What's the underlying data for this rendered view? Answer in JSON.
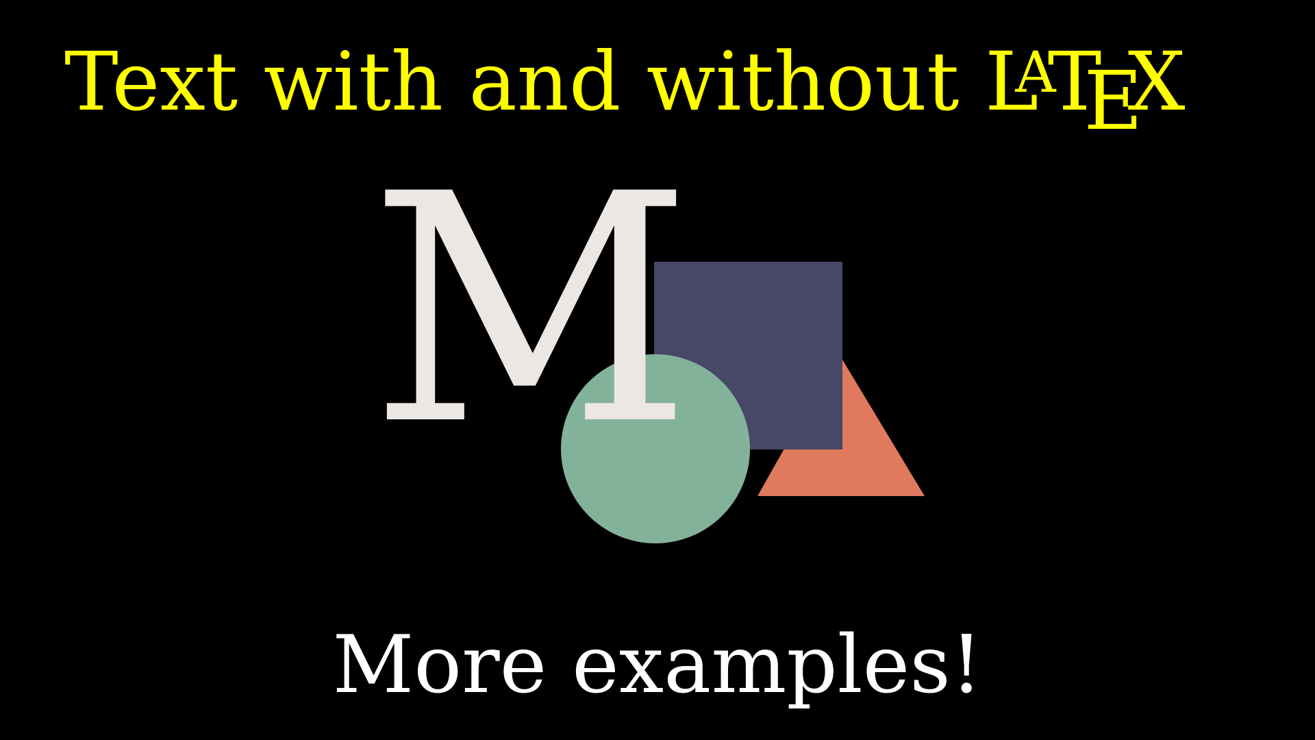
{
  "title": {
    "prefix": "Text with and without ",
    "latex": {
      "L": "L",
      "A": "A",
      "T": "T",
      "E": "E",
      "X": "X"
    }
  },
  "logo": {
    "letter": "M"
  },
  "subtitle": "More examples!",
  "colors": {
    "background": "#000000",
    "title": "#ffff00",
    "logo_letter": "#ece7e2",
    "circle": "#83b29b",
    "square": "#464866",
    "triangle": "#e07a5f",
    "subtitle": "#ffffff"
  }
}
